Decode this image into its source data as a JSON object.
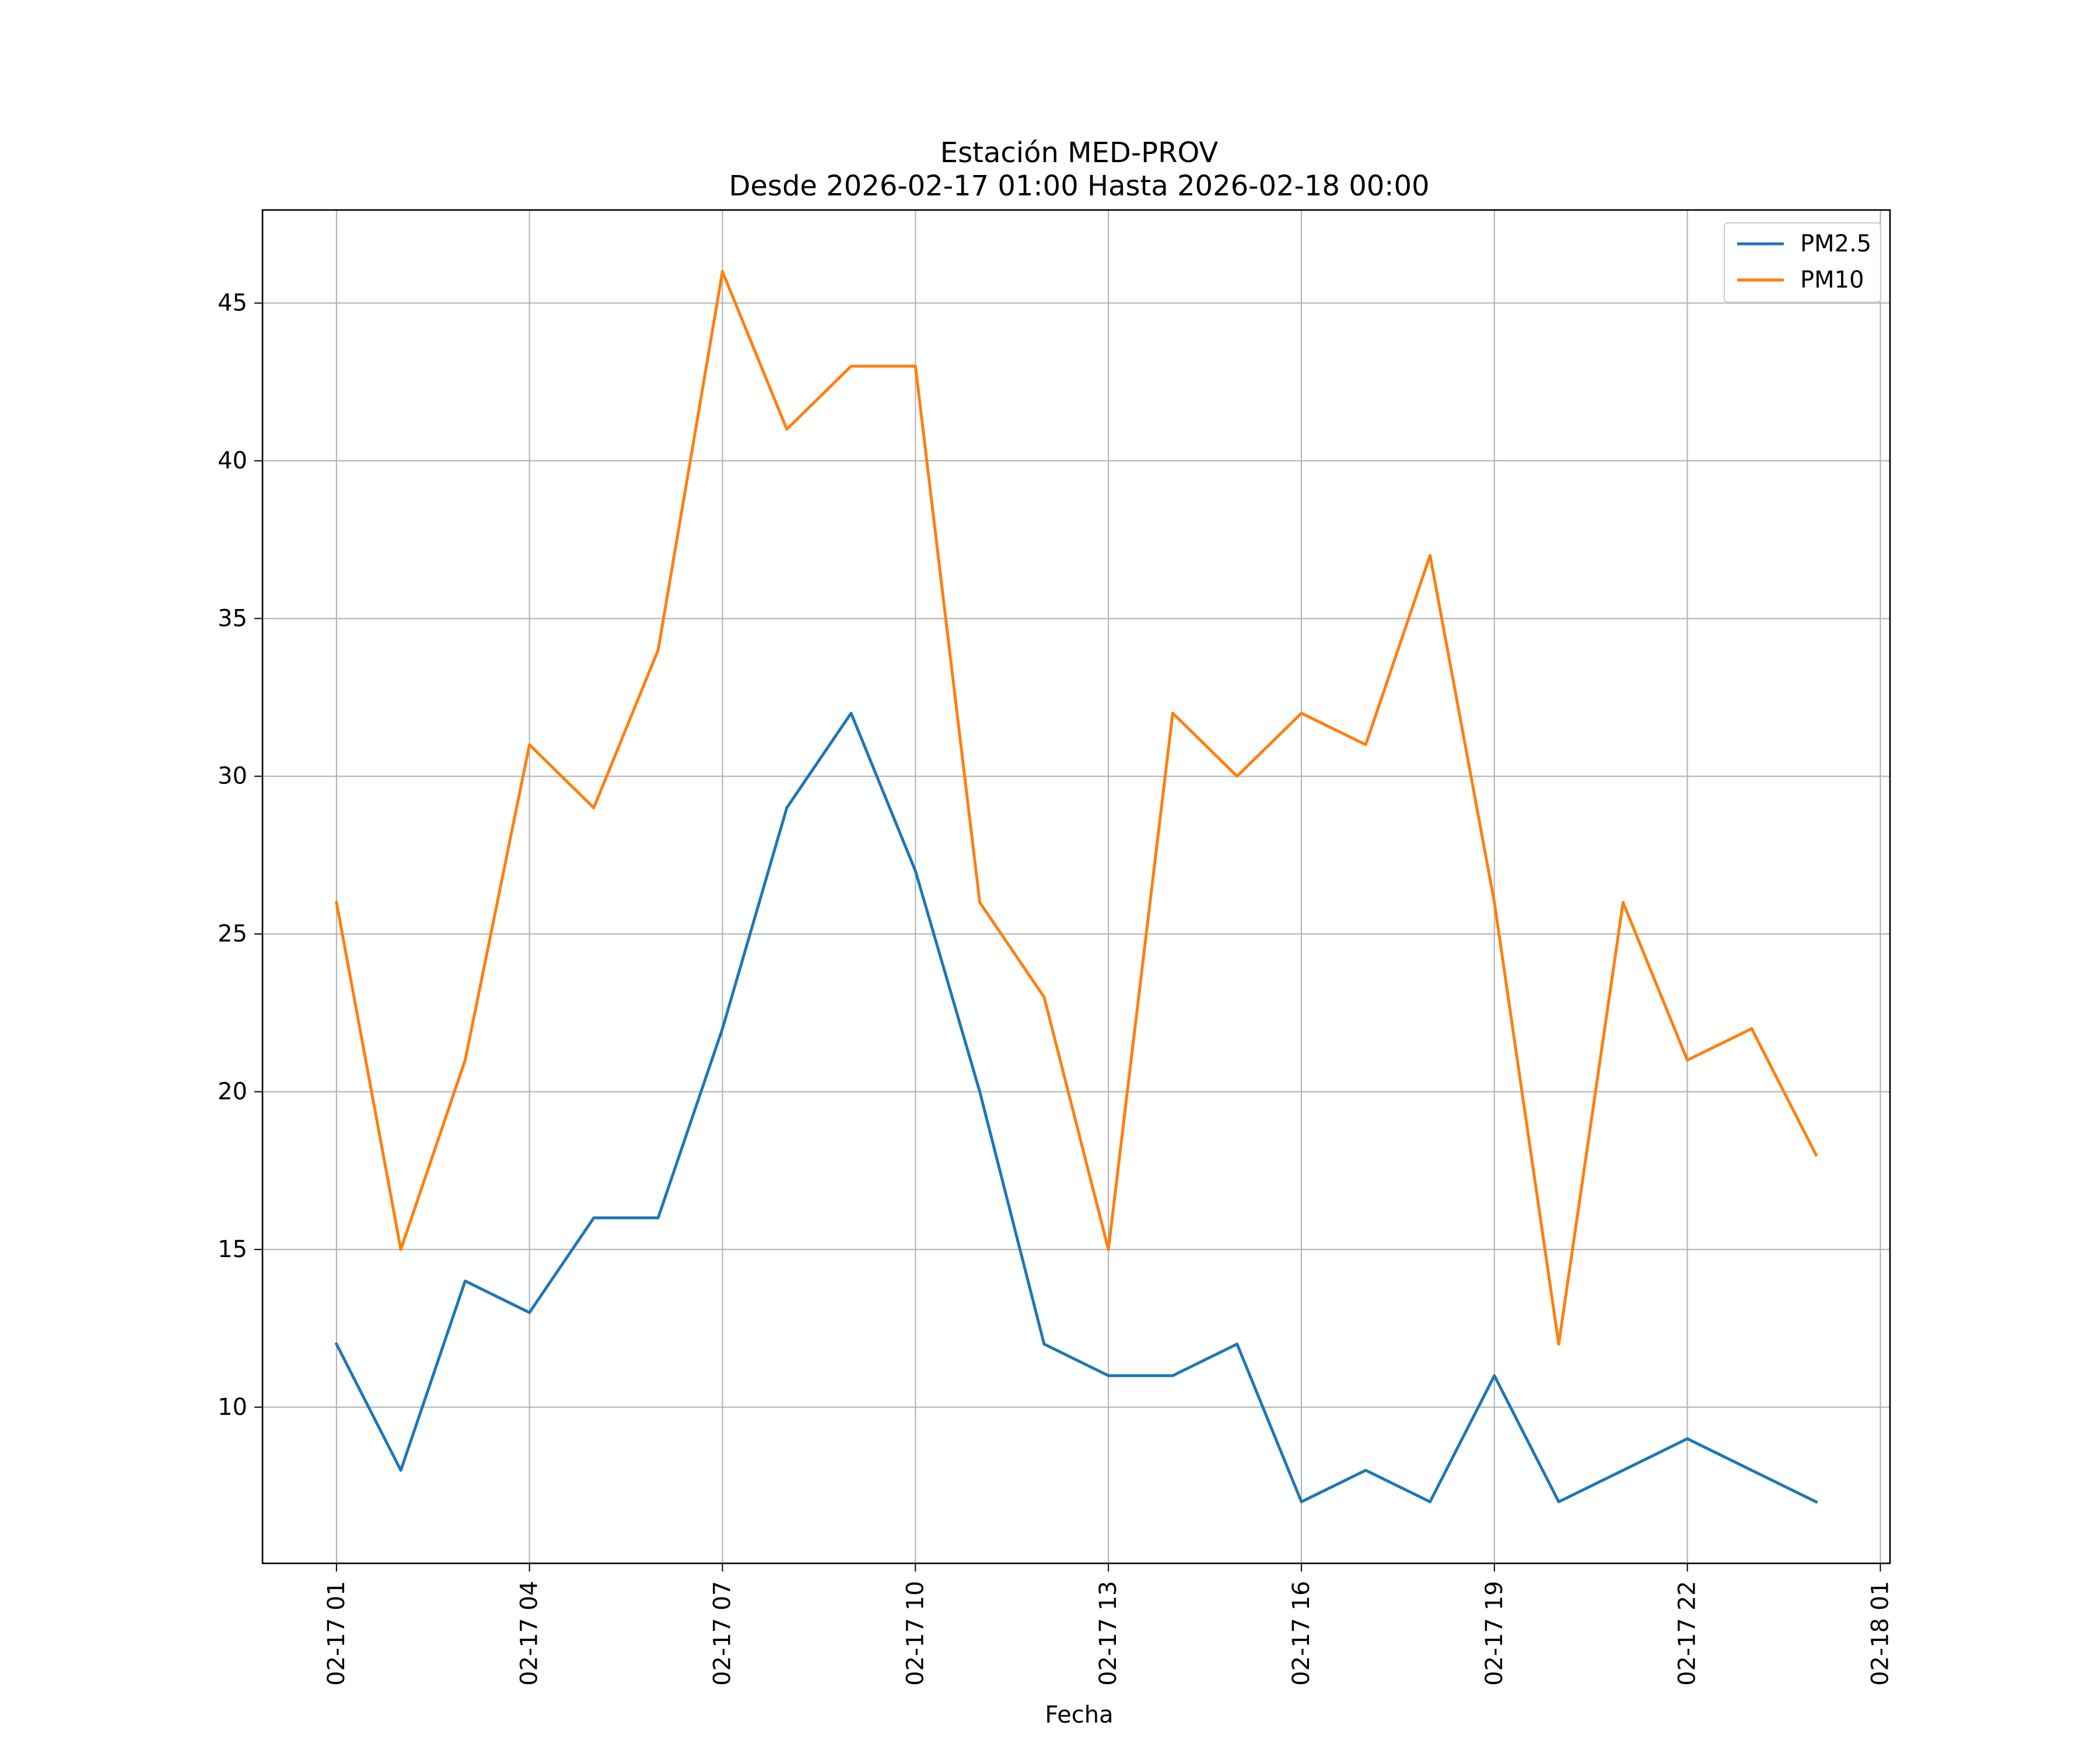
{
  "chart_data": {
    "type": "line",
    "title": "Estación MED-PROV",
    "subtitle": "Desde 2026-02-17 01:00 Hasta 2026-02-18 00:00",
    "xlabel": "Fecha",
    "ylabel": "",
    "x": [
      "2026-02-17 01:00",
      "2026-02-17 02:00",
      "2026-02-17 03:00",
      "2026-02-17 04:00",
      "2026-02-17 05:00",
      "2026-02-17 06:00",
      "2026-02-17 07:00",
      "2026-02-17 08:00",
      "2026-02-17 09:00",
      "2026-02-17 10:00",
      "2026-02-17 11:00",
      "2026-02-17 12:00",
      "2026-02-17 13:00",
      "2026-02-17 14:00",
      "2026-02-17 15:00",
      "2026-02-17 16:00",
      "2026-02-17 17:00",
      "2026-02-17 18:00",
      "2026-02-17 19:00",
      "2026-02-17 20:00",
      "2026-02-17 21:00",
      "2026-02-17 22:00",
      "2026-02-17 23:00",
      "2026-02-18 00:00"
    ],
    "series": [
      {
        "name": "PM2.5",
        "color": "#1f77b4",
        "values": [
          12,
          8,
          14,
          13,
          16,
          16,
          22,
          29,
          32,
          27,
          20,
          12,
          11,
          11,
          12,
          7,
          8,
          7,
          11,
          7,
          8,
          9,
          8,
          7
        ]
      },
      {
        "name": "PM10",
        "color": "#ff7f0e",
        "values": [
          26,
          15,
          21,
          31,
          29,
          34,
          46,
          41,
          43,
          43,
          26,
          23,
          15,
          32,
          30,
          32,
          31,
          37,
          26,
          12,
          26,
          21,
          22,
          18
        ]
      }
    ],
    "xticks": [
      {
        "label": "02-17 01",
        "value": "2026-02-17 01:00"
      },
      {
        "label": "02-17 04",
        "value": "2026-02-17 04:00"
      },
      {
        "label": "02-17 07",
        "value": "2026-02-17 07:00"
      },
      {
        "label": "02-17 10",
        "value": "2026-02-17 10:00"
      },
      {
        "label": "02-17 13",
        "value": "2026-02-17 13:00"
      },
      {
        "label": "02-17 16",
        "value": "2026-02-17 16:00"
      },
      {
        "label": "02-17 19",
        "value": "2026-02-17 19:00"
      },
      {
        "label": "02-17 22",
        "value": "2026-02-17 22:00"
      },
      {
        "label": "02-18 01",
        "value": "2026-02-18 01:00"
      }
    ],
    "xlim": [
      "2026-02-16 23:51",
      "2026-02-18 01:09"
    ],
    "ylim": [
      5.05,
      47.95
    ],
    "yticks": [
      10,
      15,
      20,
      25,
      30,
      35,
      40,
      45
    ],
    "grid": true,
    "legend": "top-right"
  }
}
